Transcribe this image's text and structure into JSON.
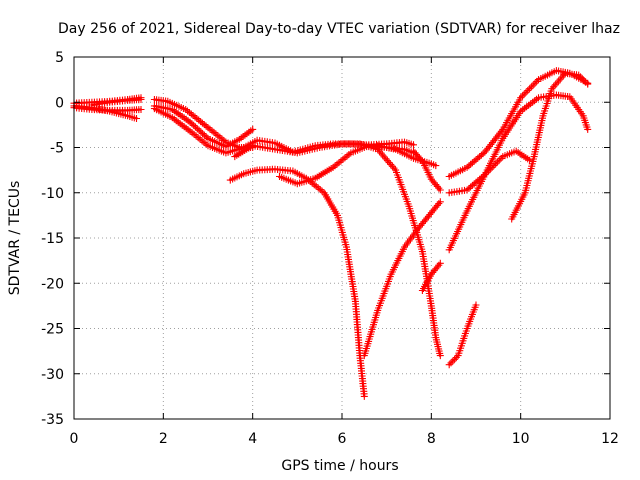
{
  "chart_data": {
    "type": "scatter",
    "title": "Day 256 of 2021, Sidereal Day-to-day VTEC variation (SDTVAR) for receiver lhaz",
    "xlabel": "GPS time / hours",
    "ylabel": "SDTVAR / TECUs",
    "xlim": [
      0,
      12
    ],
    "ylim": [
      -35,
      5
    ],
    "xticks": [
      0,
      2,
      4,
      6,
      8,
      10,
      12
    ],
    "xtick_labels": [
      "0",
      "2",
      "4",
      "6",
      "8",
      "10",
      "12"
    ],
    "yticks": [
      -35,
      -30,
      -25,
      -20,
      -15,
      -10,
      -5,
      0,
      5
    ],
    "ytick_labels": [
      "-35",
      "-30",
      "-25",
      "-20",
      "-15",
      "-10",
      "-5",
      "0",
      "5"
    ],
    "grid": true,
    "marker": "+",
    "color": "#ff0000",
    "series": [
      {
        "name": "trace-1",
        "points": [
          [
            0.0,
            -0.6
          ],
          [
            0.4,
            -0.8
          ],
          [
            0.8,
            -0.9
          ],
          [
            1.2,
            -0.9
          ],
          [
            1.5,
            -0.8
          ]
        ]
      },
      {
        "name": "trace-2",
        "points": [
          [
            0.0,
            -0.1
          ],
          [
            0.4,
            0.0
          ],
          [
            0.8,
            0.1
          ],
          [
            1.2,
            0.3
          ],
          [
            1.5,
            0.5
          ]
        ]
      },
      {
        "name": "trace-3",
        "points": [
          [
            0.0,
            -0.4
          ],
          [
            0.4,
            -0.6
          ],
          [
            0.8,
            -1.0
          ],
          [
            1.2,
            -1.5
          ],
          [
            1.4,
            -1.8
          ]
        ]
      },
      {
        "name": "trace-4",
        "points": [
          [
            0.4,
            -0.3
          ],
          [
            0.8,
            0.0
          ],
          [
            1.2,
            0.2
          ],
          [
            1.5,
            0.3
          ]
        ]
      },
      {
        "name": "trace-5",
        "points": [
          [
            1.8,
            0.3
          ],
          [
            2.1,
            0.1
          ],
          [
            2.5,
            -0.8
          ],
          [
            3.0,
            -2.8
          ],
          [
            3.4,
            -4.4
          ],
          [
            3.7,
            -5.0
          ],
          [
            4.0,
            -5.0
          ]
        ]
      },
      {
        "name": "trace-6",
        "points": [
          [
            1.8,
            -0.7
          ],
          [
            2.2,
            -1.7
          ],
          [
            2.6,
            -3.2
          ],
          [
            3.0,
            -4.8
          ],
          [
            3.4,
            -5.6
          ],
          [
            3.8,
            -5.0
          ],
          [
            4.1,
            -4.2
          ],
          [
            4.5,
            -4.5
          ],
          [
            4.9,
            -5.5
          ],
          [
            5.4,
            -4.8
          ],
          [
            5.8,
            -4.6
          ],
          [
            6.2,
            -4.6
          ],
          [
            6.6,
            -4.7
          ],
          [
            7.0,
            -4.6
          ],
          [
            7.4,
            -4.4
          ],
          [
            7.6,
            -4.7
          ]
        ]
      },
      {
        "name": "trace-7",
        "points": [
          [
            1.8,
            -0.4
          ],
          [
            2.2,
            -0.8
          ],
          [
            2.6,
            -2.2
          ],
          [
            3.0,
            -4.0
          ],
          [
            3.4,
            -4.9
          ],
          [
            3.7,
            -4.1
          ],
          [
            4.0,
            -3.0
          ]
        ]
      },
      {
        "name": "trace-8",
        "points": [
          [
            3.5,
            -8.6
          ],
          [
            3.8,
            -7.9
          ],
          [
            4.1,
            -7.5
          ],
          [
            4.5,
            -7.4
          ],
          [
            4.9,
            -7.6
          ],
          [
            5.2,
            -8.4
          ],
          [
            5.6,
            -10.0
          ],
          [
            5.9,
            -12.5
          ],
          [
            6.1,
            -16.0
          ],
          [
            6.3,
            -22.0
          ],
          [
            6.4,
            -28.0
          ],
          [
            6.5,
            -32.5
          ]
        ]
      },
      {
        "name": "trace-9",
        "points": [
          [
            3.6,
            -6.0
          ],
          [
            4.0,
            -4.8
          ],
          [
            4.5,
            -5.2
          ],
          [
            5.0,
            -5.6
          ],
          [
            5.5,
            -5.0
          ],
          [
            6.0,
            -4.6
          ],
          [
            6.4,
            -4.6
          ],
          [
            6.8,
            -5.2
          ],
          [
            7.2,
            -7.5
          ],
          [
            7.5,
            -11.5
          ],
          [
            7.8,
            -16.5
          ],
          [
            8.0,
            -22.5
          ],
          [
            8.1,
            -26.0
          ],
          [
            8.2,
            -28.0
          ]
        ]
      },
      {
        "name": "trace-10",
        "points": [
          [
            4.6,
            -8.2
          ],
          [
            5.0,
            -9.0
          ],
          [
            5.4,
            -8.4
          ],
          [
            5.8,
            -7.2
          ],
          [
            6.2,
            -5.6
          ],
          [
            6.6,
            -4.8
          ],
          [
            7.0,
            -5.0
          ],
          [
            7.4,
            -5.2
          ],
          [
            7.6,
            -5.6
          ]
        ]
      },
      {
        "name": "trace-11",
        "points": [
          [
            6.5,
            -28.0
          ],
          [
            6.8,
            -23.0
          ],
          [
            7.1,
            -19.0
          ],
          [
            7.4,
            -16.0
          ],
          [
            7.7,
            -14.0
          ],
          [
            8.0,
            -12.2
          ],
          [
            8.2,
            -11.0
          ]
        ]
      },
      {
        "name": "trace-12",
        "points": [
          [
            6.8,
            -4.8
          ],
          [
            7.2,
            -5.2
          ],
          [
            7.6,
            -6.2
          ],
          [
            8.0,
            -6.8
          ],
          [
            8.1,
            -7.0
          ]
        ]
      },
      {
        "name": "trace-13",
        "points": [
          [
            7.6,
            -5.4
          ],
          [
            7.8,
            -6.5
          ],
          [
            8.0,
            -8.5
          ],
          [
            8.2,
            -9.7
          ]
        ]
      },
      {
        "name": "trace-14",
        "points": [
          [
            7.8,
            -20.8
          ],
          [
            8.0,
            -19.0
          ],
          [
            8.2,
            -17.8
          ]
        ]
      },
      {
        "name": "trace-15",
        "points": [
          [
            8.4,
            -29.0
          ],
          [
            8.6,
            -28.0
          ],
          [
            8.8,
            -25.0
          ],
          [
            9.0,
            -22.4
          ]
        ]
      },
      {
        "name": "trace-16",
        "points": [
          [
            8.4,
            -16.3
          ],
          [
            8.8,
            -12.0
          ],
          [
            9.2,
            -8.0
          ],
          [
            9.6,
            -4.0
          ],
          [
            10.0,
            -1.0
          ],
          [
            10.4,
            0.5
          ],
          [
            10.8,
            0.8
          ],
          [
            11.1,
            0.6
          ],
          [
            11.4,
            -1.5
          ],
          [
            11.5,
            -3.0
          ]
        ]
      },
      {
        "name": "trace-17",
        "points": [
          [
            8.4,
            -8.2
          ],
          [
            8.8,
            -7.2
          ],
          [
            9.2,
            -5.5
          ],
          [
            9.6,
            -3.0
          ],
          [
            10.0,
            0.5
          ],
          [
            10.4,
            2.5
          ],
          [
            10.8,
            3.5
          ],
          [
            11.1,
            3.2
          ],
          [
            11.5,
            2.1
          ]
        ]
      },
      {
        "name": "trace-18",
        "points": [
          [
            8.4,
            -10.0
          ],
          [
            8.8,
            -9.7
          ],
          [
            9.2,
            -8.0
          ],
          [
            9.6,
            -6.0
          ],
          [
            9.9,
            -5.4
          ],
          [
            10.2,
            -6.4
          ]
        ]
      },
      {
        "name": "trace-19",
        "points": [
          [
            9.8,
            -12.9
          ],
          [
            10.1,
            -10.0
          ],
          [
            10.3,
            -6.0
          ],
          [
            10.5,
            -1.5
          ],
          [
            10.7,
            1.5
          ],
          [
            11.0,
            3.2
          ],
          [
            11.3,
            3.0
          ],
          [
            11.5,
            2.0
          ]
        ]
      }
    ]
  }
}
